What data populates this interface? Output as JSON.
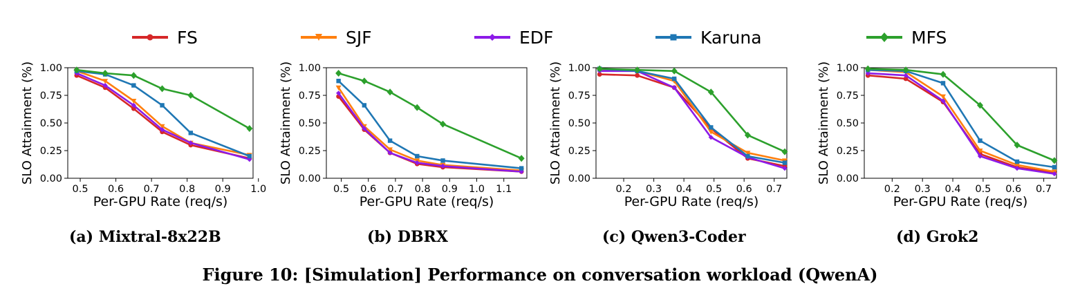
{
  "legend": [
    {
      "name": "FS",
      "color": "#d62728",
      "marker": "circle"
    },
    {
      "name": "SJF",
      "color": "#ff7f0e",
      "marker": "triangle-down"
    },
    {
      "name": "EDF",
      "color": "#8c1be8",
      "marker": "diamond-small"
    },
    {
      "name": "Karuna",
      "color": "#1f77b4",
      "marker": "square"
    },
    {
      "name": "MFS",
      "color": "#2ca02c",
      "marker": "diamond"
    }
  ],
  "captions": {
    "a": "(a) Mixtral-8x22B",
    "b": "(b) DBRX",
    "c": "(c) Qwen3-Coder",
    "d": "(d) Grok2",
    "figure": "Figure 10: [Simulation] Performance on conversation workload (QwenA)"
  },
  "chart_data": [
    {
      "type": "line",
      "xlabel": "Per-GPU Rate (req/s)",
      "ylabel": "SLO Attainment (%)",
      "xlim": [
        0.465,
        0.985
      ],
      "ylim": [
        0,
        1.0
      ],
      "xticks": [
        0.5,
        0.6,
        0.7,
        0.8,
        0.9,
        1.0
      ],
      "xticklabels": [
        "0.5",
        "0.6",
        "0.7",
        "0.8",
        "0.9",
        "1.0"
      ],
      "yticks": [
        0.0,
        0.25,
        0.5,
        0.75,
        1.0
      ],
      "yticklabels": [
        "0.00",
        "0.25",
        "0.50",
        "0.75",
        "1.00"
      ],
      "x": [
        0.49,
        0.57,
        0.65,
        0.73,
        0.81,
        0.975
      ],
      "series": [
        {
          "name": "FS",
          "values": [
            0.93,
            0.82,
            0.63,
            0.42,
            0.3,
            0.18
          ]
        },
        {
          "name": "SJF",
          "values": [
            0.97,
            0.88,
            0.7,
            0.47,
            0.32,
            0.21
          ]
        },
        {
          "name": "EDF",
          "values": [
            0.95,
            0.84,
            0.66,
            0.44,
            0.32,
            0.17
          ]
        },
        {
          "name": "Karuna",
          "values": [
            0.97,
            0.94,
            0.84,
            0.66,
            0.41,
            0.2
          ]
        },
        {
          "name": "MFS",
          "values": [
            0.98,
            0.95,
            0.93,
            0.81,
            0.75,
            0.45
          ]
        }
      ]
    },
    {
      "type": "line",
      "xlabel": "Per-GPU Rate (req/s)",
      "ylabel": "SLO Attainment (%)",
      "xlim": [
        0.445,
        1.185
      ],
      "ylim": [
        0,
        1.0
      ],
      "xticks": [
        0.5,
        0.6,
        0.7,
        0.8,
        0.9,
        1.0,
        1.1
      ],
      "xticklabels": [
        "0.5",
        "0.6",
        "0.7",
        "0.8",
        "0.9",
        "1.0",
        "1.1"
      ],
      "yticks": [
        0.0,
        0.25,
        0.5,
        0.75,
        1.0
      ],
      "yticklabels": [
        "0.00",
        "0.25",
        "0.50",
        "0.75",
        "1.00"
      ],
      "x": [
        0.49,
        0.585,
        0.68,
        0.78,
        0.875,
        1.165
      ],
      "series": [
        {
          "name": "FS",
          "values": [
            0.74,
            0.44,
            0.23,
            0.13,
            0.1,
            0.06
          ]
        },
        {
          "name": "SJF",
          "values": [
            0.82,
            0.47,
            0.26,
            0.16,
            0.12,
            0.07
          ]
        },
        {
          "name": "EDF",
          "values": [
            0.77,
            0.45,
            0.23,
            0.14,
            0.11,
            0.06
          ]
        },
        {
          "name": "Karuna",
          "values": [
            0.88,
            0.66,
            0.34,
            0.2,
            0.16,
            0.09
          ]
        },
        {
          "name": "MFS",
          "values": [
            0.95,
            0.88,
            0.78,
            0.64,
            0.49,
            0.18
          ]
        }
      ]
    },
    {
      "type": "line",
      "xlabel": "Per-GPU Rate (req/s)",
      "ylabel": "SLO Attainment (%)",
      "xlim": [
        0.108,
        0.742
      ],
      "ylim": [
        0,
        1.0
      ],
      "xticks": [
        0.2,
        0.3,
        0.4,
        0.5,
        0.6,
        0.7
      ],
      "xticklabels": [
        "0.2",
        "0.3",
        "0.4",
        "0.5",
        "0.6",
        "0.7"
      ],
      "yticks": [
        0.0,
        0.25,
        0.5,
        0.75,
        1.0
      ],
      "yticklabels": [
        "0.00",
        "0.25",
        "0.50",
        "0.75",
        "1.00"
      ],
      "x": [
        0.12,
        0.245,
        0.368,
        0.49,
        0.612,
        0.735
      ],
      "series": [
        {
          "name": "FS",
          "values": [
            0.94,
            0.93,
            0.82,
            0.45,
            0.18,
            0.11
          ]
        },
        {
          "name": "SJF",
          "values": [
            0.98,
            0.97,
            0.88,
            0.42,
            0.23,
            0.16
          ]
        },
        {
          "name": "EDF",
          "values": [
            0.97,
            0.97,
            0.82,
            0.37,
            0.19,
            0.09
          ]
        },
        {
          "name": "Karuna",
          "values": [
            0.99,
            0.97,
            0.9,
            0.46,
            0.2,
            0.14
          ]
        },
        {
          "name": "MFS",
          "values": [
            0.99,
            0.98,
            0.97,
            0.78,
            0.39,
            0.24
          ]
        }
      ]
    },
    {
      "type": "line",
      "xlabel": "Per-GPU Rate (req/s)",
      "ylabel": "SLO Attainment (%)",
      "xlim": [
        0.108,
        0.742
      ],
      "ylim": [
        0,
        1.0
      ],
      "xticks": [
        0.2,
        0.3,
        0.4,
        0.5,
        0.6,
        0.7
      ],
      "xticklabels": [
        "0.2",
        "0.3",
        "0.4",
        "0.5",
        "0.6",
        "0.7"
      ],
      "yticks": [
        0.0,
        0.25,
        0.5,
        0.75,
        1.0
      ],
      "yticklabels": [
        "0.00",
        "0.25",
        "0.50",
        "0.75",
        "1.00"
      ],
      "x": [
        0.12,
        0.245,
        0.368,
        0.49,
        0.612,
        0.735
      ],
      "series": [
        {
          "name": "FS",
          "values": [
            0.93,
            0.9,
            0.69,
            0.22,
            0.1,
            0.05
          ]
        },
        {
          "name": "SJF",
          "values": [
            0.98,
            0.96,
            0.74,
            0.25,
            0.12,
            0.06
          ]
        },
        {
          "name": "EDF",
          "values": [
            0.95,
            0.93,
            0.7,
            0.2,
            0.09,
            0.04
          ]
        },
        {
          "name": "Karuna",
          "values": [
            0.98,
            0.97,
            0.86,
            0.34,
            0.15,
            0.1
          ]
        },
        {
          "name": "MFS",
          "values": [
            0.99,
            0.98,
            0.94,
            0.66,
            0.3,
            0.16
          ]
        }
      ]
    }
  ]
}
